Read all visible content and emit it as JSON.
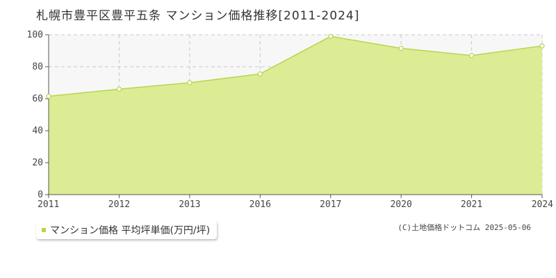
{
  "chart_data": {
    "type": "area",
    "title": "札幌市豊平区豊平五条 マンション価格推移[2011-2024]",
    "xlabel": "",
    "ylabel": "",
    "categories": [
      "2011",
      "2012",
      "2013",
      "2016",
      "2017",
      "2020",
      "2021",
      "2024"
    ],
    "series": [
      {
        "name": "マンション価格 平均坪単価(万円/坪)",
        "values": [
          61.5,
          66,
          70,
          75.5,
          99,
          91.5,
          87,
          93
        ]
      }
    ],
    "ylim": [
      0,
      100
    ],
    "yticks": [
      0,
      20,
      40,
      60,
      80,
      100
    ],
    "grid": true,
    "legend_position": "bottom-left"
  },
  "copyright": "(C)土地価格ドットコム 2025-05-06",
  "colors": {
    "fill": "#dcec94",
    "line": "#b5d64c",
    "marker_fill": "#ffffff",
    "grid": "#c8c8c8",
    "axis": "#555555",
    "plot_bg": "#f7f7f7"
  }
}
